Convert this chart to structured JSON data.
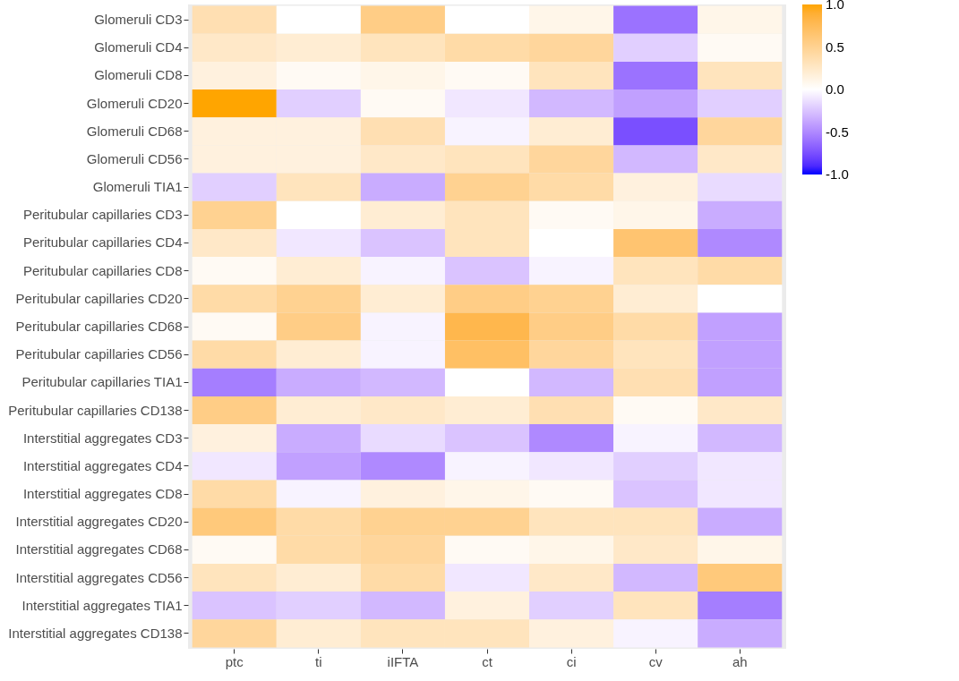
{
  "chart_data": {
    "type": "heatmap",
    "categories": [
      "ptc",
      "ti",
      "iIFTA",
      "ct",
      "ci",
      "cv",
      "ah"
    ],
    "y_categories": [
      "Glomeruli CD3",
      "Glomeruli CD4",
      "Glomeruli CD8",
      "Glomeruli CD20",
      "Glomeruli CD68",
      "Glomeruli CD56",
      "Glomeruli TIA1",
      "Peritubular capillaries CD3",
      "Peritubular capillaries CD4",
      "Peritubular capillaries CD8",
      "Peritubular capillaries CD20",
      "Peritubular capillaries CD68",
      "Peritubular capillaries CD56",
      "Peritubular capillaries TIA1",
      "Peritubular capillaries CD138",
      "Interstitial aggregates CD3",
      "Interstitial aggregates CD4",
      "Interstitial aggregates CD8",
      "Interstitial aggregates CD20",
      "Interstitial aggregates CD68",
      "Interstitial aggregates CD56",
      "Interstitial aggregates TIA1",
      "Interstitial aggregates CD138"
    ],
    "cells": [
      [
        0.35,
        0.0,
        0.55,
        0.0,
        0.1,
        -0.6,
        0.1
      ],
      [
        0.25,
        0.2,
        0.3,
        0.4,
        0.45,
        -0.2,
        0.05
      ],
      [
        0.15,
        0.05,
        0.1,
        0.05,
        0.3,
        -0.6,
        0.3
      ],
      [
        1.0,
        -0.2,
        0.05,
        -0.1,
        -0.3,
        -0.4,
        -0.2
      ],
      [
        0.15,
        0.15,
        0.35,
        -0.05,
        0.2,
        -0.75,
        0.45
      ],
      [
        0.15,
        0.15,
        0.25,
        0.3,
        0.45,
        -0.3,
        0.25
      ],
      [
        -0.2,
        0.3,
        -0.35,
        0.5,
        0.4,
        0.15,
        -0.15
      ],
      [
        0.5,
        0.0,
        0.2,
        0.3,
        0.05,
        0.1,
        -0.35
      ],
      [
        0.25,
        -0.1,
        -0.25,
        0.3,
        0.0,
        0.65,
        -0.5
      ],
      [
        0.05,
        0.2,
        -0.05,
        -0.25,
        -0.05,
        0.3,
        0.4
      ],
      [
        0.4,
        0.5,
        0.2,
        0.55,
        0.5,
        0.2,
        0.0
      ],
      [
        0.05,
        0.55,
        -0.05,
        0.8,
        0.55,
        0.4,
        -0.4
      ],
      [
        0.4,
        0.2,
        -0.05,
        0.7,
        0.45,
        0.3,
        -0.4
      ],
      [
        -0.55,
        -0.35,
        -0.3,
        0.0,
        -0.3,
        0.35,
        -0.4
      ],
      [
        0.55,
        0.2,
        0.25,
        0.2,
        0.35,
        0.05,
        0.25
      ],
      [
        0.15,
        -0.35,
        -0.15,
        -0.25,
        -0.5,
        -0.05,
        -0.3
      ],
      [
        -0.1,
        -0.4,
        -0.5,
        -0.05,
        -0.1,
        -0.2,
        -0.1
      ],
      [
        0.4,
        -0.05,
        0.15,
        0.1,
        0.05,
        -0.25,
        -0.1
      ],
      [
        0.6,
        0.4,
        0.5,
        0.5,
        0.3,
        0.3,
        -0.35
      ],
      [
        0.05,
        0.4,
        0.45,
        0.05,
        0.1,
        0.25,
        0.1
      ],
      [
        0.3,
        0.2,
        0.4,
        -0.1,
        0.25,
        -0.3,
        0.6
      ],
      [
        -0.25,
        -0.2,
        -0.3,
        0.15,
        -0.2,
        0.3,
        -0.55
      ],
      [
        0.45,
        0.2,
        0.3,
        0.3,
        0.15,
        -0.05,
        -0.35
      ]
    ],
    "clim": [
      -1,
      1
    ],
    "cticks": [
      {
        "value": 1,
        "label": "1.0"
      },
      {
        "value": 0.5,
        "label": "0.5"
      },
      {
        "value": 0,
        "label": "0.0"
      },
      {
        "value": -0.5,
        "label": "-0.5"
      },
      {
        "value": -1,
        "label": "-1.0"
      }
    ],
    "grid": false
  }
}
